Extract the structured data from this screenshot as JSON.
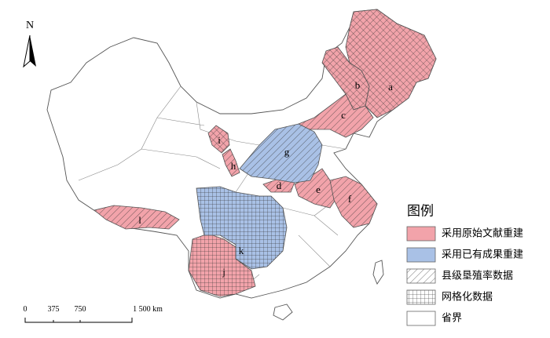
{
  "north": "N",
  "regions": [
    {
      "label": "a"
    },
    {
      "label": "b"
    },
    {
      "label": "c"
    },
    {
      "label": "d"
    },
    {
      "label": "e"
    },
    {
      "label": "f"
    },
    {
      "label": "g"
    },
    {
      "label": "h"
    },
    {
      "label": "i"
    },
    {
      "label": "j"
    },
    {
      "label": "k"
    },
    {
      "label": "l"
    }
  ],
  "scale_bar": {
    "labels": [
      "0",
      "375",
      "750",
      "1 500 km"
    ]
  },
  "legend": {
    "title": "图例",
    "items": [
      "采用原始文献重建",
      "采用已有成果重建",
      "县级垦殖率数据",
      "网格化数据",
      "省界"
    ]
  }
}
